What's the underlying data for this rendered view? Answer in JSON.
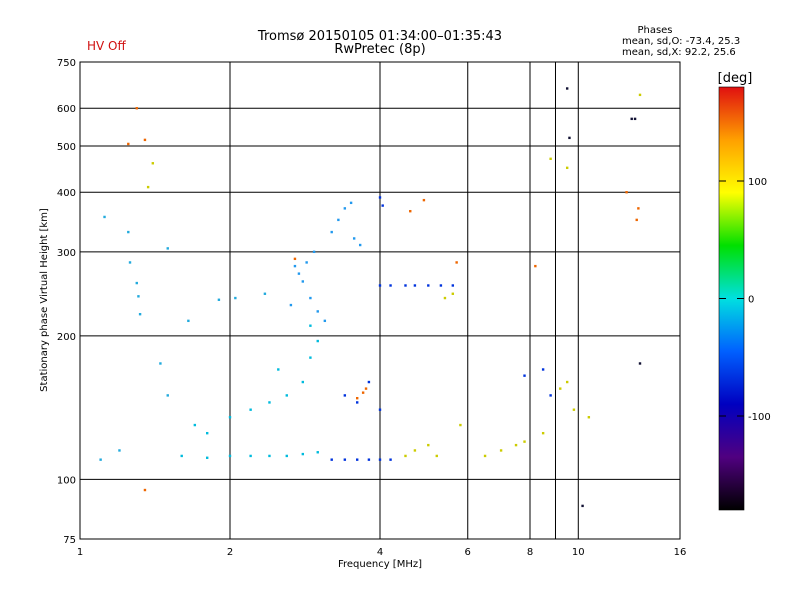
{
  "page": {
    "status": "HV Off"
  },
  "chart_data": {
    "type": "scatter",
    "title": "Tromsø 20150105 01:34:00–01:35:43",
    "subtitle": "RwPretec (8p)",
    "xlabel": "Frequency [MHz]",
    "ylabel": "Stationary phase Virtual Height [km]",
    "x_scale": "log",
    "y_scale": "log",
    "xlim": [
      1,
      16
    ],
    "ylim": [
      75,
      750
    ],
    "x_ticks": [
      1,
      2,
      4,
      6,
      8,
      10,
      16
    ],
    "x_minor_ticks": [
      9
    ],
    "y_ticks": [
      75,
      100,
      200,
      300,
      400,
      500,
      600,
      750
    ],
    "grid": true,
    "phases_legend": {
      "title": "Phases",
      "line1": "mean, sd,O: -73.4, 25.3",
      "line2": "mean, sd,X:  92.2, 25.6"
    },
    "colorbar": {
      "label": "[deg]",
      "range": [
        -180,
        180
      ],
      "ticks": [
        100,
        0,
        -100
      ],
      "colors": [
        "#e01010",
        "#ffa000",
        "#ffff00",
        "#00e000",
        "#00e0e0",
        "#0060ff",
        "#0000c0",
        "#500080",
        "#000000"
      ]
    },
    "series": [
      {
        "color": "#22aadd",
        "points": [
          [
            1.12,
            355
          ],
          [
            1.25,
            330
          ],
          [
            1.26,
            285
          ],
          [
            1.3,
            258
          ],
          [
            1.31,
            242
          ],
          [
            1.32,
            222
          ],
          [
            1.5,
            305
          ],
          [
            1.65,
            215
          ],
          [
            1.9,
            238
          ],
          [
            2.05,
            240
          ],
          [
            2.35,
            245
          ],
          [
            1.45,
            175
          ],
          [
            1.5,
            150
          ],
          [
            1.1,
            110
          ],
          [
            1.2,
            115
          ]
        ]
      },
      {
        "color": "#2299ee",
        "points": [
          [
            2.65,
            232
          ],
          [
            2.7,
            280
          ],
          [
            2.75,
            270
          ],
          [
            2.8,
            260
          ],
          [
            2.9,
            240
          ],
          [
            3.0,
            225
          ],
          [
            3.1,
            215
          ],
          [
            3.2,
            330
          ],
          [
            3.3,
            350
          ],
          [
            3.4,
            370
          ],
          [
            3.5,
            380
          ],
          [
            3.55,
            320
          ],
          [
            3.65,
            310
          ],
          [
            2.95,
            300
          ],
          [
            2.85,
            285
          ]
        ]
      },
      {
        "color": "#0033dd",
        "points": [
          [
            3.2,
            110
          ],
          [
            3.4,
            110
          ],
          [
            3.6,
            110
          ],
          [
            3.8,
            110
          ],
          [
            4.0,
            110
          ],
          [
            4.2,
            110
          ],
          [
            3.4,
            150
          ],
          [
            3.6,
            145
          ],
          [
            3.8,
            160
          ],
          [
            4.0,
            140
          ],
          [
            4.0,
            255
          ],
          [
            4.2,
            255
          ],
          [
            4.5,
            255
          ],
          [
            4.7,
            255
          ],
          [
            5.0,
            255
          ],
          [
            5.3,
            255
          ],
          [
            5.6,
            255
          ],
          [
            4.0,
            390
          ],
          [
            4.05,
            375
          ],
          [
            7.8,
            165
          ],
          [
            8.5,
            170
          ],
          [
            8.8,
            150
          ]
        ]
      },
      {
        "color": "#ee6600",
        "points": [
          [
            1.3,
            600
          ],
          [
            1.35,
            515
          ],
          [
            1.25,
            505
          ],
          [
            1.35,
            95
          ],
          [
            2.7,
            290
          ],
          [
            3.6,
            148
          ],
          [
            3.7,
            152
          ],
          [
            3.75,
            155
          ],
          [
            4.6,
            365
          ],
          [
            4.9,
            385
          ],
          [
            5.7,
            285
          ],
          [
            8.2,
            280
          ],
          [
            12.5,
            400
          ],
          [
            13.2,
            370
          ],
          [
            13.1,
            350
          ]
        ]
      },
      {
        "color": "#cccc00",
        "points": [
          [
            1.4,
            460
          ],
          [
            1.37,
            410
          ],
          [
            4.5,
            112
          ],
          [
            4.7,
            115
          ],
          [
            5.0,
            118
          ],
          [
            5.2,
            112
          ],
          [
            5.4,
            240
          ],
          [
            5.6,
            245
          ],
          [
            5.8,
            130
          ],
          [
            6.5,
            112
          ],
          [
            7.0,
            115
          ],
          [
            7.5,
            118
          ],
          [
            7.8,
            120
          ],
          [
            8.5,
            125
          ],
          [
            9.2,
            155
          ],
          [
            9.5,
            160
          ],
          [
            9.8,
            140
          ],
          [
            10.5,
            135
          ],
          [
            8.8,
            470
          ],
          [
            9.5,
            450
          ],
          [
            13.3,
            640
          ]
        ]
      },
      {
        "color": "#00bbdd",
        "points": [
          [
            1.6,
            112
          ],
          [
            1.8,
            111
          ],
          [
            2.0,
            112
          ],
          [
            2.2,
            112
          ],
          [
            2.4,
            112
          ],
          [
            2.6,
            112
          ],
          [
            2.8,
            113
          ],
          [
            3.0,
            114
          ],
          [
            2.0,
            135
          ],
          [
            2.2,
            140
          ],
          [
            2.4,
            145
          ],
          [
            2.6,
            150
          ],
          [
            2.8,
            160
          ],
          [
            1.8,
            125
          ],
          [
            1.7,
            130
          ],
          [
            2.5,
            170
          ],
          [
            2.9,
            180
          ],
          [
            3.0,
            195
          ],
          [
            2.9,
            210
          ]
        ]
      },
      {
        "color": "#111133",
        "points": [
          [
            9.5,
            660
          ],
          [
            12.8,
            570
          ],
          [
            9.6,
            520
          ],
          [
            13.0,
            570
          ],
          [
            13.3,
            175
          ],
          [
            10.2,
            88
          ]
        ]
      }
    ]
  }
}
